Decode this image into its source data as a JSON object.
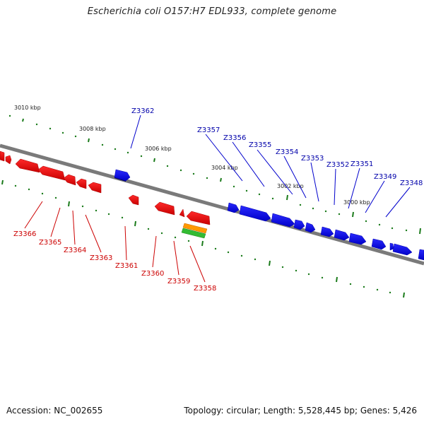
{
  "title": "Escherichia coli O157:H7 EDL933, complete genome",
  "footer": {
    "accession": "Accession: NC_002655",
    "summary": "Topology: circular; Length: 5,528,445 bp; Genes: 5,426"
  },
  "colors": {
    "forward_gene": "#0000ee",
    "reverse_gene": "#ee0000",
    "backbone": "#808080",
    "tick": "#1a7a1a",
    "orange_feature": "#ff9900",
    "green_feature": "#33bb33"
  },
  "kbp_labels": [
    "3010 kbp",
    "3008 kbp",
    "3006 kbp",
    "3004 kbp",
    "3002 kbp",
    "3000 kbp"
  ],
  "forward_genes": [
    "Z3362",
    "Z3357",
    "Z3356",
    "Z3355",
    "Z3354",
    "Z3353",
    "Z3352",
    "Z3351",
    "Z3349",
    "Z3348"
  ],
  "reverse_genes": [
    "Z3366",
    "Z3365",
    "Z3364",
    "Z3363",
    "Z3361",
    "Z3360",
    "Z3359",
    "Z3358"
  ]
}
